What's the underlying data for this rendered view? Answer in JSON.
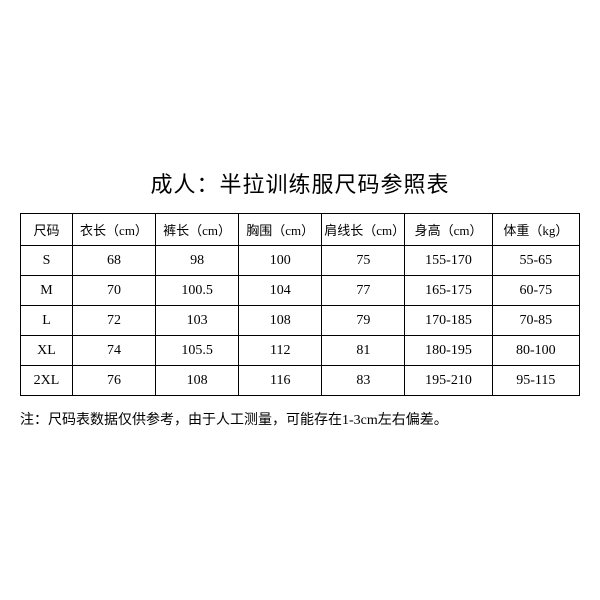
{
  "title": "成人：半拉训练服尺码参照表",
  "table": {
    "columns": [
      "尺码",
      "衣长（cm）",
      "裤长（cm）",
      "胸围（cm）",
      "肩线长（cm）",
      "身高（cm）",
      "体重（kg）"
    ],
    "rows": [
      [
        "S",
        "68",
        "98",
        "100",
        "75",
        "155-170",
        "55-65"
      ],
      [
        "M",
        "70",
        "100.5",
        "104",
        "77",
        "165-175",
        "60-75"
      ],
      [
        "L",
        "72",
        "103",
        "108",
        "79",
        "170-185",
        "70-85"
      ],
      [
        "XL",
        "74",
        "105.5",
        "112",
        "81",
        "180-195",
        "80-100"
      ],
      [
        "2XL",
        "76",
        "108",
        "116",
        "83",
        "195-210",
        "95-115"
      ]
    ],
    "column_classes": [
      "col-size",
      "col-std",
      "col-std",
      "col-std",
      "col-std",
      "col-wide",
      "col-wide"
    ],
    "border_color": "#000000",
    "background_color": "#ffffff",
    "header_fontsize": 13,
    "cell_fontsize": 14
  },
  "note": "注：尺码表数据仅供参考，由于人工测量，可能存在1-3cm左右偏差。",
  "title_fontsize": 22,
  "note_fontsize": 14
}
